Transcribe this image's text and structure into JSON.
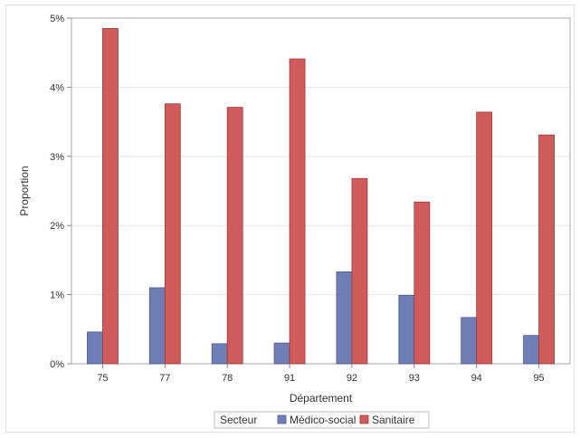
{
  "chart_data": {
    "type": "bar",
    "xlabel": "Département",
    "ylabel": "Proportion",
    "categories": [
      "75",
      "77",
      "78",
      "91",
      "92",
      "93",
      "94",
      "95"
    ],
    "series": [
      {
        "name": "Médico-social",
        "color": "#6f7fb5",
        "values": [
          0.46,
          1.1,
          0.29,
          0.3,
          1.33,
          0.99,
          0.67,
          0.41
        ]
      },
      {
        "name": "Sanitaire",
        "color": "#d05b5b",
        "values": [
          4.85,
          3.76,
          3.71,
          4.41,
          2.68,
          2.34,
          3.64,
          3.31
        ]
      }
    ],
    "ylim": [
      0,
      5
    ],
    "yticks": [
      0,
      1,
      2,
      3,
      4,
      5
    ],
    "ytick_labels": [
      "0%",
      "1%",
      "2%",
      "3%",
      "4%",
      "5%"
    ],
    "grid": true,
    "legend": {
      "title": "Secteur",
      "placement": "bottom-center"
    }
  }
}
